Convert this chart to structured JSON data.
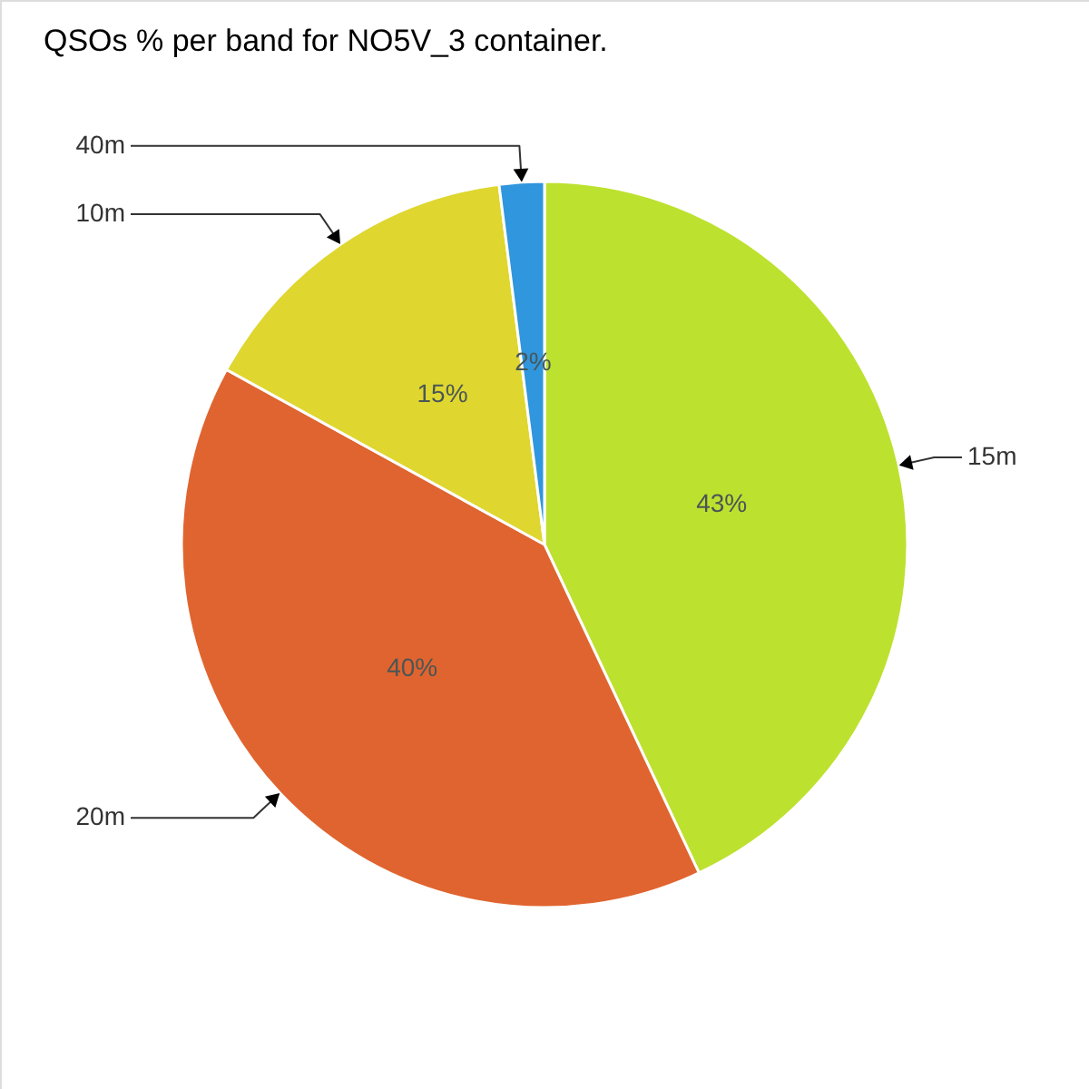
{
  "chart_data": {
    "type": "pie",
    "title": "QSOs % per band for NO5V_3 container.",
    "categories": [
      "15m",
      "20m",
      "10m",
      "40m"
    ],
    "values": [
      43,
      40,
      15,
      2
    ],
    "colors": [
      "#bde12f",
      "#e0642f",
      "#dfd62f",
      "#3096dd"
    ],
    "value_labels": [
      "43%",
      "40%",
      "15%",
      "2%"
    ]
  }
}
